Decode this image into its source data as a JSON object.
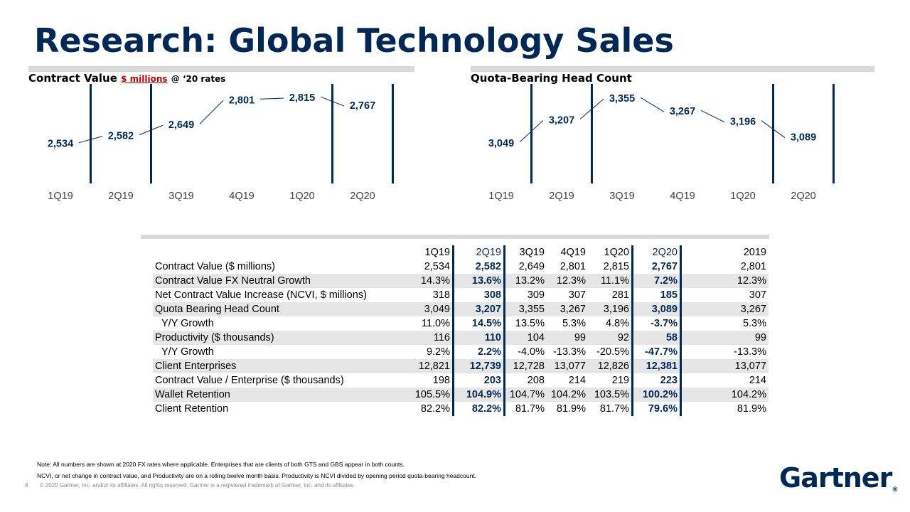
{
  "title": "Research: Global Technology Sales",
  "chart_data": [
    {
      "type": "line",
      "title": "Contract Value",
      "unit": "$ millions",
      "rate_note": "@ ‘20 rates",
      "categories": [
        "1Q19",
        "2Q19",
        "3Q19",
        "4Q19",
        "1Q20",
        "2Q20"
      ],
      "values": [
        2534,
        2582,
        2649,
        2801,
        2815,
        2767
      ],
      "labels": [
        "2,534",
        "2,582",
        "2,649",
        "2,801",
        "2,815",
        "2,767"
      ],
      "ylim": [
        2450,
        2850
      ]
    },
    {
      "type": "line",
      "title": "Quota-Bearing Head Count",
      "categories": [
        "1Q19",
        "2Q19",
        "3Q19",
        "4Q19",
        "1Q20",
        "2Q20"
      ],
      "values": [
        3049,
        3207,
        3355,
        3267,
        3196,
        3089
      ],
      "labels": [
        "3,049",
        "3,207",
        "3,355",
        "3,267",
        "3,196",
        "3,089"
      ],
      "ylim": [
        2950,
        3400
      ]
    }
  ],
  "table": {
    "headers": [
      "1Q19",
      "2Q19",
      "3Q19",
      "4Q19",
      "1Q20",
      "2Q20",
      "2019"
    ],
    "rows": [
      {
        "label": "Contract Value ($ millions)",
        "values": [
          "2,534",
          "2,582",
          "2,649",
          "2,801",
          "2,815",
          "2,767",
          "2,801"
        ]
      },
      {
        "label": "Contract Value FX Neutral Growth",
        "values": [
          "14.3%",
          "13.6%",
          "13.2%",
          "12.3%",
          "11.1%",
          "7.2%",
          "12.3%"
        ]
      },
      {
        "label": "Net Contract Value Increase (NCVI, $ millions)",
        "values": [
          "318",
          "308",
          "309",
          "307",
          "281",
          "185",
          "307"
        ]
      },
      {
        "label": "Quota Bearing Head Count",
        "values": [
          "3,049",
          "3,207",
          "3,355",
          "3,267",
          "3,196",
          "3,089",
          "3,267"
        ]
      },
      {
        "label": "Y/Y Growth",
        "values": [
          "11.0%",
          "14.5%",
          "13.5%",
          "5.3%",
          "4.8%",
          "-3.7%",
          "5.3%"
        ]
      },
      {
        "label": "Productivity ($ thousands)",
        "values": [
          "116",
          "110",
          "104",
          "99",
          "92",
          "58",
          "99"
        ]
      },
      {
        "label": "Y/Y Growth",
        "values": [
          "9.2%",
          "2.2%",
          "-4.0%",
          "-13.3%",
          "-20.5%",
          "-47.7%",
          "-13.3%"
        ]
      },
      {
        "label": "Client Enterprises",
        "values": [
          "12,821",
          "12,739",
          "12,728",
          "13,077",
          "12,826",
          "12,381",
          "13,077"
        ]
      },
      {
        "label": "Contract Value / Enterprise ($ thousands)",
        "values": [
          "198",
          "203",
          "208",
          "214",
          "219",
          "223",
          "214"
        ]
      },
      {
        "label": "Wallet Retention",
        "values": [
          "105.5%",
          "104.9%",
          "104.7%",
          "104.2%",
          "103.5%",
          "100.2%",
          "104.2%"
        ]
      },
      {
        "label": "Client Retention",
        "values": [
          "82.2%",
          "82.2%",
          "81.7%",
          "81.9%",
          "81.7%",
          "79.6%",
          "81.9%"
        ]
      }
    ]
  },
  "notes": [
    "Note: All numbers are shown at 2020 FX rates where applicable. Enterprises that are clients of both GTS and GBS appear in both counts.",
    "NCVI, or net change in contract value, and Productivity are on a rolling twelve month basis. Productivity is NCVI divided by opening period quota-bearing headcount."
  ],
  "page_number": "8",
  "copyright": "© 2020 Gartner, Inc. and/or its affiliates. All rights reserved. Gartner is a registered trademark of Gartner, Inc. and its affiliates.",
  "logo": "Gartner",
  "colors": {
    "brand": "#002856",
    "rule": "#d9d9d9",
    "unit_accent": "#c00000"
  }
}
